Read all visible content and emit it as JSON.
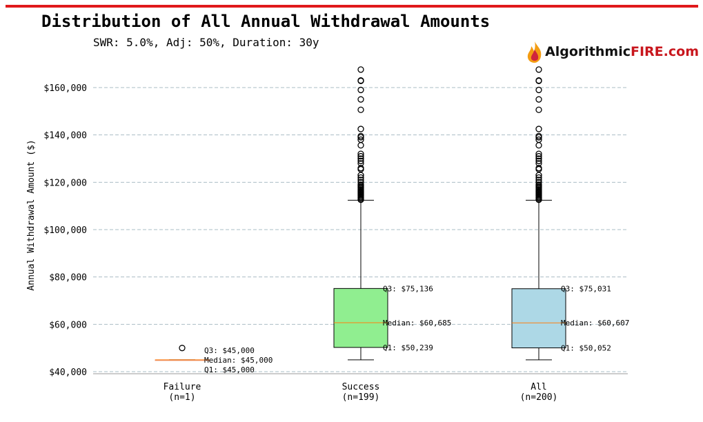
{
  "chart_data": {
    "type": "box",
    "title": "Distribution of All Annual Withdrawal Amounts",
    "subtitle": "SWR: 5.0%, Adj: 50%, Duration: 30y",
    "xlabel": "",
    "ylabel": "Annual Withdrawal Amount ($)",
    "ylim": [
      39000,
      171000
    ],
    "yticks": [
      40000,
      60000,
      80000,
      100000,
      120000,
      140000,
      160000
    ],
    "ytick_labels": [
      "$40,000",
      "$60,000",
      "$80,000",
      "$100,000",
      "$120,000",
      "$140,000",
      "$160,000"
    ],
    "grid": "y-dashed",
    "categories": [
      {
        "label": "Failure",
        "sub": "(n=1)",
        "color": "#e9967a",
        "q1": 45000,
        "median": 45000,
        "q3": 45000,
        "whislo": 45000,
        "whishi": 45000,
        "fliers": [
          50000
        ],
        "annotations": [
          "Q3: $45,000",
          "Median: $45,000",
          "Q1: $45,000"
        ]
      },
      {
        "label": "Success",
        "sub": "(n=199)",
        "color": "#90ee90",
        "q1": 50239,
        "median": 60685,
        "q3": 75136,
        "whislo": 45000,
        "whishi": 112400,
        "fliers": [
          167600,
          163000,
          162800,
          159000,
          155000,
          150600,
          142500,
          139500,
          139000,
          138000,
          135600,
          132000,
          131000,
          130000,
          129000,
          128000,
          126000,
          125500,
          123000,
          122000,
          121000,
          120000,
          119000,
          118500,
          118000,
          117500,
          117000,
          116500,
          116000,
          115500,
          115000,
          114500,
          114000,
          113500,
          113000,
          112600
        ],
        "annotations": [
          "Q3: $75,136",
          "Median: $60,685",
          "Q1: $50,239"
        ]
      },
      {
        "label": "All",
        "sub": "(n=200)",
        "color": "#add8e6",
        "q1": 50052,
        "median": 60607,
        "q3": 75031,
        "whislo": 45000,
        "whishi": 112400,
        "fliers": [
          167600,
          163000,
          162800,
          159000,
          155000,
          150600,
          142500,
          139500,
          139000,
          138000,
          135600,
          132000,
          131000,
          130000,
          129000,
          128000,
          126000,
          125500,
          123000,
          122000,
          121000,
          120000,
          119000,
          118500,
          118000,
          117500,
          117000,
          116500,
          116000,
          115500,
          115000,
          114500,
          114000,
          113500,
          113000,
          112600
        ],
        "annotations": [
          "Q3: $75,031",
          "Median: $60,607",
          "Q1: $50,052"
        ]
      }
    ],
    "median_color": "#ff7f0e",
    "accent_color": "#e0191b"
  },
  "logo": {
    "part1": "Algorithmic",
    "part2": "FIRE.com"
  }
}
